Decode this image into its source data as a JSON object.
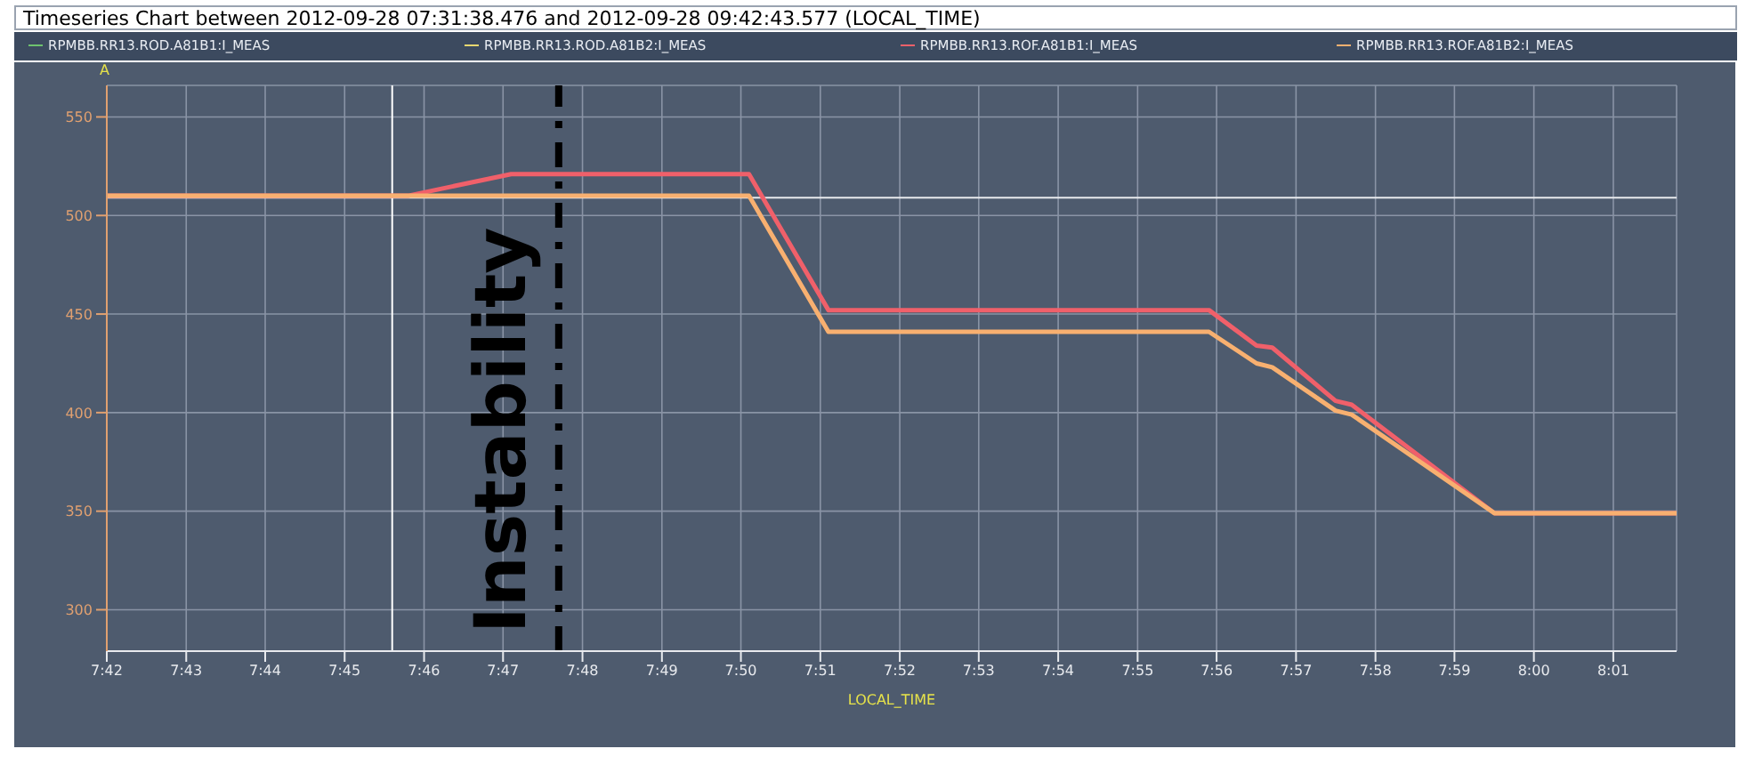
{
  "chart_data": {
    "type": "line",
    "title": "Timeseries Chart between 2012-09-28 07:31:38.476 and 2012-09-28 09:42:43.577 (LOCAL_TIME)",
    "xlabel": "LOCAL_TIME",
    "ylabel": "A",
    "series": [
      {
        "name": "RPMBB.RR13.ROD.A81B1:I_MEAS",
        "color": "#6ec26e"
      },
      {
        "name": "RPMBB.RR13.ROD.A81B2:I_MEAS",
        "color": "#e8d870"
      },
      {
        "name": "RPMBB.RR13.ROF.A81B1:I_MEAS",
        "color": "#f0606a",
        "x": [
          7.7,
          7.7633,
          7.785,
          7.835,
          7.8517,
          7.9317,
          7.9417,
          7.945,
          7.9583,
          7.9617,
          7.9917,
          8.03
        ],
        "values": [
          510,
          510,
          521,
          521,
          452,
          452,
          434,
          433,
          406,
          404,
          349,
          349
        ]
      },
      {
        "name": "RPMBB.RR13.ROF.A81B2:I_MEAS",
        "color": "#f8b070",
        "x": [
          7.7,
          7.835,
          7.8517,
          7.9317,
          7.9417,
          7.945,
          7.9583,
          7.9617,
          7.9917,
          8.03
        ],
        "values": [
          510,
          510,
          441,
          441,
          425,
          423,
          401,
          399,
          349,
          349
        ]
      }
    ],
    "xlim": [
      7.7,
      8.03
    ],
    "xticks": [
      {
        "value": 7.7,
        "label": "7:42"
      },
      {
        "value": 7.7167,
        "label": "7:43"
      },
      {
        "value": 7.7333,
        "label": "7:44"
      },
      {
        "value": 7.75,
        "label": "7:45"
      },
      {
        "value": 7.7667,
        "label": "7:46"
      },
      {
        "value": 7.7833,
        "label": "7:47"
      },
      {
        "value": 7.8,
        "label": "7:48"
      },
      {
        "value": 7.8167,
        "label": "7:49"
      },
      {
        "value": 7.8333,
        "label": "7:50"
      },
      {
        "value": 7.85,
        "label": "7:51"
      },
      {
        "value": 7.8667,
        "label": "7:52"
      },
      {
        "value": 7.8833,
        "label": "7:53"
      },
      {
        "value": 7.9,
        "label": "7:54"
      },
      {
        "value": 7.9167,
        "label": "7:55"
      },
      {
        "value": 7.9333,
        "label": "7:56"
      },
      {
        "value": 7.95,
        "label": "7:57"
      },
      {
        "value": 7.9667,
        "label": "7:58"
      },
      {
        "value": 7.9833,
        "label": "7:59"
      },
      {
        "value": 8.0,
        "label": "8:00"
      },
      {
        "value": 8.0167,
        "label": "8:01"
      }
    ],
    "ylim": [
      279,
      566
    ],
    "yticks": [
      300,
      350,
      400,
      450,
      500,
      550
    ],
    "ref_lines": [
      {
        "axis": "y",
        "value": 509,
        "color": "#e8eaee",
        "line_style": "solid"
      },
      {
        "axis": "x",
        "value": 7.76,
        "color": "#ffffff",
        "line_style": "solid"
      },
      {
        "axis": "x",
        "value": 7.795,
        "label": "Instability",
        "color": "#000000",
        "line_style": "dashdot"
      }
    ],
    "grid": true,
    "legend": "top",
    "marker": "none",
    "line_style": "solid"
  }
}
